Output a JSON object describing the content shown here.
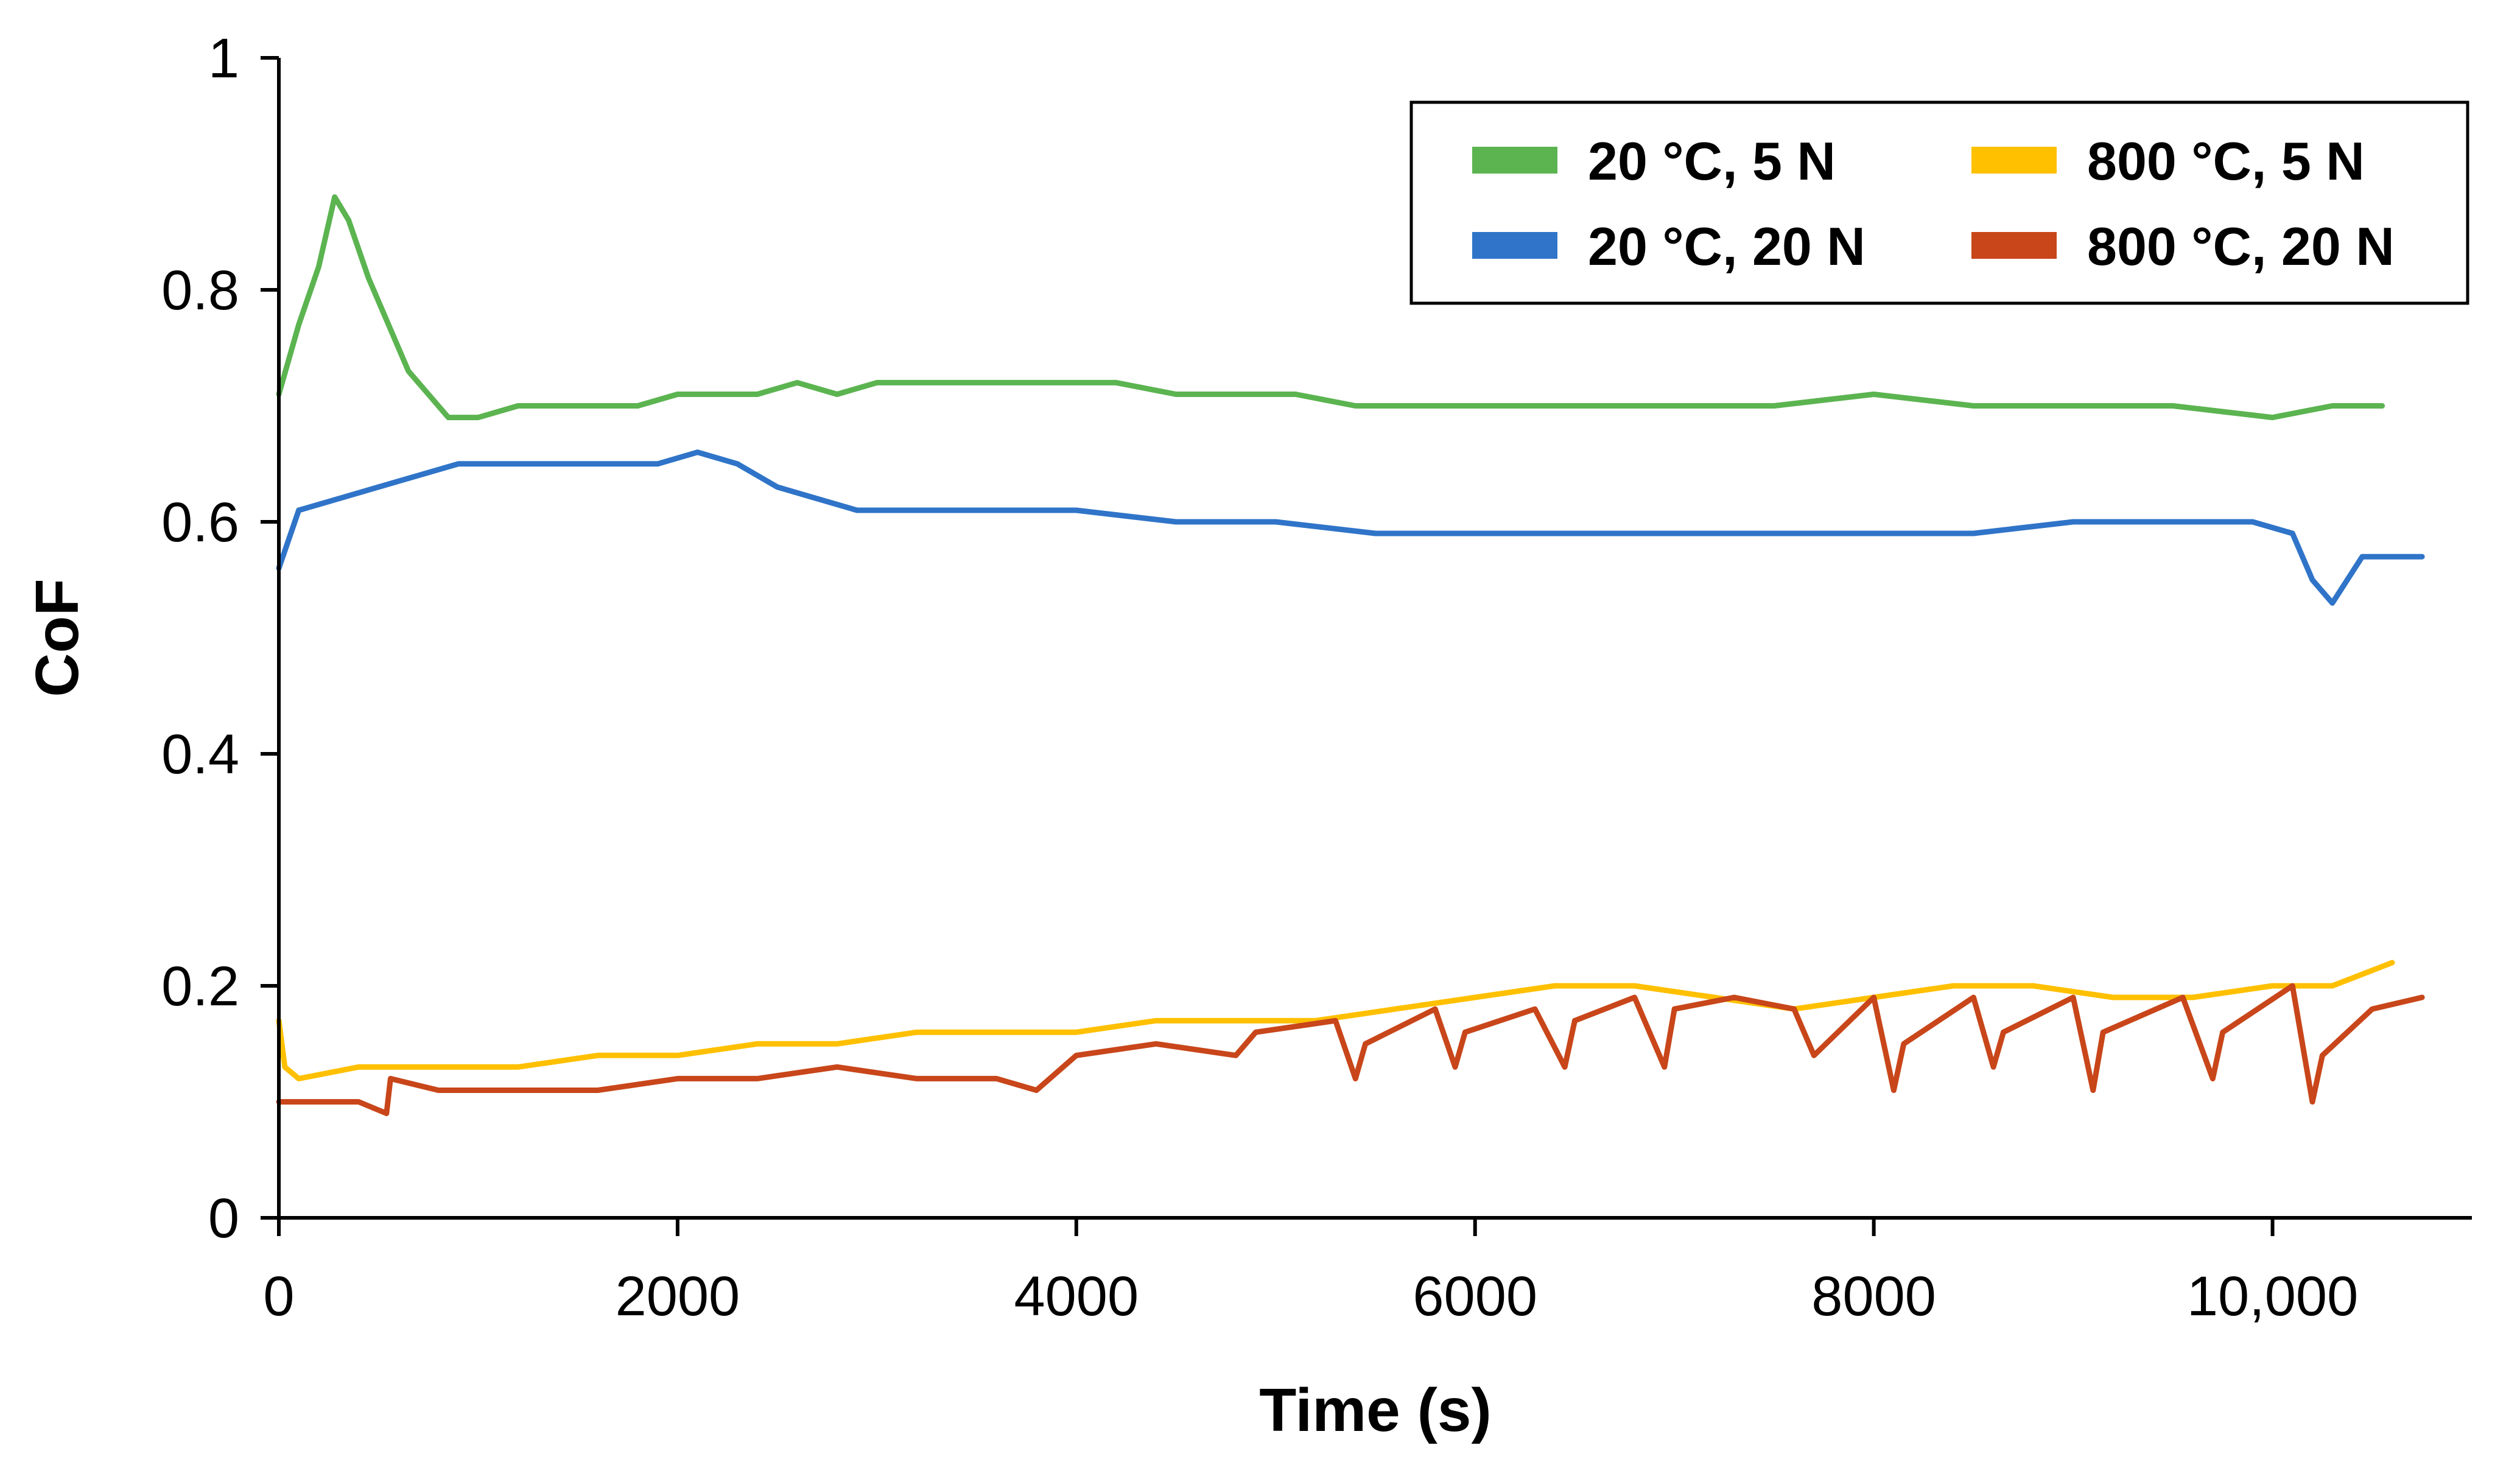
{
  "chart_data": {
    "type": "line",
    "title": "",
    "xlabel": "Time (s)",
    "ylabel": "CoF",
    "xlim": [
      0,
      11000
    ],
    "ylim": [
      0,
      1
    ],
    "x_ticks": [
      {
        "value": 0,
        "label": "0"
      },
      {
        "value": 2000,
        "label": "2000"
      },
      {
        "value": 4000,
        "label": "4000"
      },
      {
        "value": 6000,
        "label": "6000"
      },
      {
        "value": 8000,
        "label": "8000"
      },
      {
        "value": 10000,
        "label": "10,000"
      }
    ],
    "y_ticks": [
      {
        "value": 0,
        "label": "0"
      },
      {
        "value": 0.2,
        "label": "0.2"
      },
      {
        "value": 0.4,
        "label": "0.4"
      },
      {
        "value": 0.6,
        "label": "0.6"
      },
      {
        "value": 0.8,
        "label": "0.8"
      },
      {
        "value": 1,
        "label": "1"
      }
    ],
    "grid": false,
    "legend_position": "top-right",
    "series": [
      {
        "name": "20 °C, 5 N",
        "color": "#5bb450",
        "x": [
          0,
          100,
          200,
          280,
          350,
          450,
          550,
          650,
          750,
          850,
          1000,
          1200,
          1400,
          1600,
          1800,
          2000,
          2200,
          2400,
          2600,
          2800,
          3000,
          3300,
          3600,
          3900,
          4200,
          4500,
          4800,
          5100,
          5400,
          5700,
          6000,
          6500,
          7000,
          7500,
          8000,
          8500,
          9000,
          9500,
          10000,
          10300,
          10550
        ],
        "values": [
          0.71,
          0.77,
          0.82,
          0.88,
          0.86,
          0.81,
          0.77,
          0.73,
          0.71,
          0.69,
          0.69,
          0.7,
          0.7,
          0.7,
          0.7,
          0.71,
          0.71,
          0.71,
          0.72,
          0.71,
          0.72,
          0.72,
          0.72,
          0.72,
          0.72,
          0.71,
          0.71,
          0.71,
          0.7,
          0.7,
          0.7,
          0.7,
          0.7,
          0.7,
          0.71,
          0.7,
          0.7,
          0.7,
          0.69,
          0.7,
          0.7
        ]
      },
      {
        "name": "20 °C, 20 N",
        "color": "#2f74c8",
        "x": [
          0,
          100,
          300,
          500,
          700,
          900,
          1100,
          1300,
          1500,
          1700,
          1900,
          2100,
          2300,
          2500,
          2700,
          2900,
          3200,
          3600,
          4000,
          4500,
          5000,
          5500,
          6000,
          6500,
          7000,
          7500,
          8000,
          8500,
          9000,
          9500,
          9900,
          10100,
          10200,
          10300,
          10450,
          10750
        ],
        "values": [
          0.56,
          0.61,
          0.62,
          0.63,
          0.64,
          0.65,
          0.65,
          0.65,
          0.65,
          0.65,
          0.65,
          0.66,
          0.65,
          0.63,
          0.62,
          0.61,
          0.61,
          0.61,
          0.61,
          0.6,
          0.6,
          0.59,
          0.59,
          0.59,
          0.59,
          0.59,
          0.59,
          0.59,
          0.6,
          0.6,
          0.6,
          0.59,
          0.55,
          0.53,
          0.57,
          0.57
        ]
      },
      {
        "name": "800 °C, 5 N",
        "color": "#ffc000",
        "x": [
          0,
          30,
          100,
          400,
          800,
          1200,
          1600,
          2000,
          2400,
          2800,
          3200,
          3600,
          4000,
          4400,
          4800,
          5200,
          5600,
          6000,
          6400,
          6800,
          7200,
          7600,
          8000,
          8400,
          8800,
          9200,
          9600,
          10000,
          10300,
          10600
        ],
        "values": [
          0.17,
          0.13,
          0.12,
          0.13,
          0.13,
          0.13,
          0.14,
          0.14,
          0.15,
          0.15,
          0.16,
          0.16,
          0.16,
          0.17,
          0.17,
          0.17,
          0.18,
          0.19,
          0.2,
          0.2,
          0.19,
          0.18,
          0.19,
          0.2,
          0.2,
          0.19,
          0.19,
          0.2,
          0.2,
          0.22
        ]
      },
      {
        "name": "800 °C, 20 N",
        "color": "#c8461a",
        "x": [
          0,
          200,
          400,
          540,
          560,
          800,
          1200,
          1600,
          2000,
          2400,
          2800,
          3200,
          3600,
          3800,
          4000,
          4400,
          4800,
          4900,
          5300,
          5400,
          5450,
          5800,
          5900,
          5950,
          6300,
          6450,
          6500,
          6800,
          6950,
          7000,
          7300,
          7600,
          7700,
          8000,
          8100,
          8150,
          8500,
          8600,
          8650,
          9000,
          9100,
          9150,
          9550,
          9700,
          9750,
          10100,
          10200,
          10250,
          10500,
          10750
        ],
        "values": [
          0.1,
          0.1,
          0.1,
          0.09,
          0.12,
          0.11,
          0.11,
          0.11,
          0.12,
          0.12,
          0.13,
          0.12,
          0.12,
          0.11,
          0.14,
          0.15,
          0.14,
          0.16,
          0.17,
          0.12,
          0.15,
          0.18,
          0.13,
          0.16,
          0.18,
          0.13,
          0.17,
          0.19,
          0.13,
          0.18,
          0.19,
          0.18,
          0.14,
          0.19,
          0.11,
          0.15,
          0.19,
          0.13,
          0.16,
          0.19,
          0.11,
          0.16,
          0.19,
          0.12,
          0.16,
          0.2,
          0.1,
          0.14,
          0.18,
          0.19
        ]
      }
    ]
  }
}
